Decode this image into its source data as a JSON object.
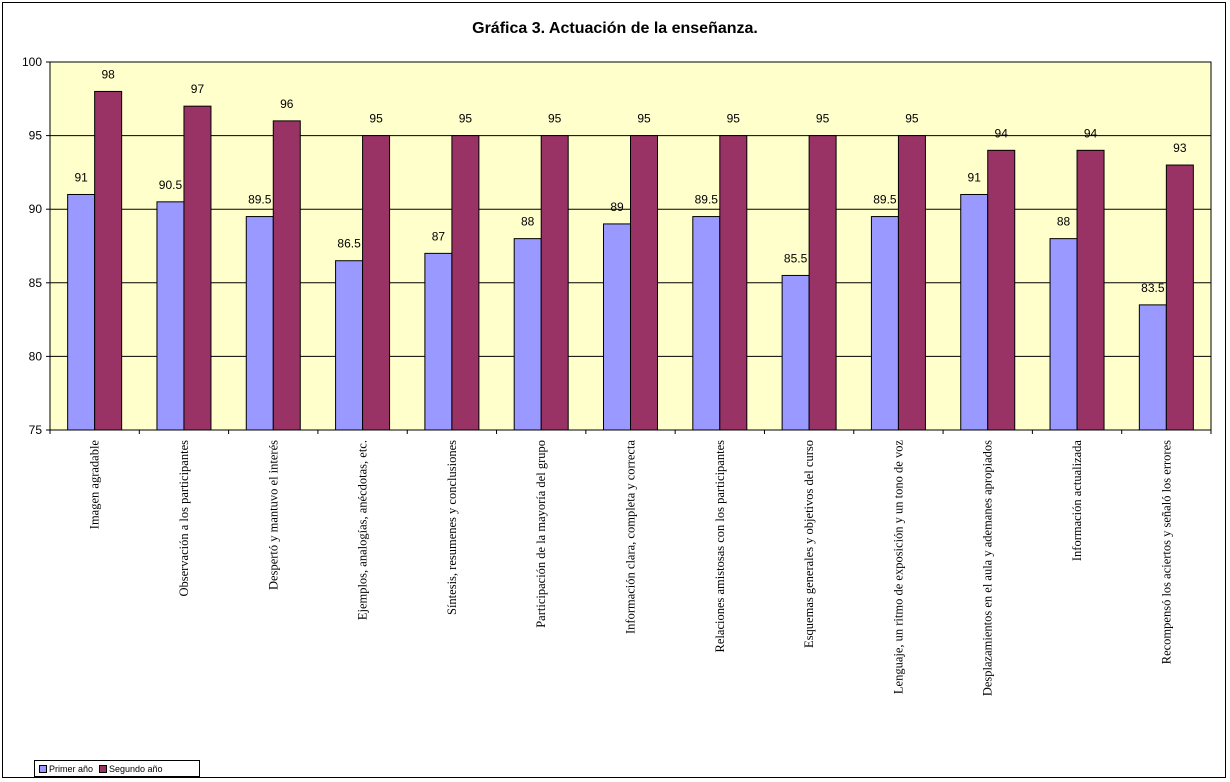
{
  "chart_data": {
    "type": "bar",
    "title": "Gráfica 3. Actuación de la enseñanza.",
    "xlabel": "",
    "ylabel": "",
    "ylim": [
      75,
      100
    ],
    "yticks": [
      75,
      80,
      85,
      90,
      95,
      100
    ],
    "grid": true,
    "legend": "bottom-left",
    "plot_background": "#FFFFCC",
    "categories": [
      "Imagen  agradable",
      "Observación  a los participantes",
      "Despertó y mantuvo el interés",
      "Ejemplos, analogías,  anécdotas, etc.",
      "Síntesis, resumenes y conclusiones",
      "Participación de la mayoría del grupo",
      "Información  clara, completa y correcta",
      "Relaciones amistosas con los participantes",
      "Esquemas  generales  y  objetivos del curso",
      "Lenguaje, un ritmo de exposición y un tono de voz",
      "Desplazamientos en el aula  y ademanes apropiados",
      "Información  actualizada",
      "Recompensó los aciertos y señaló los errores"
    ],
    "series": [
      {
        "name": "Primer año",
        "color": "#9999FF",
        "values": [
          91,
          90.5,
          89.5,
          86.5,
          87,
          88,
          89,
          89.5,
          85.5,
          89.5,
          91,
          88,
          83.5
        ]
      },
      {
        "name": "Segundo año",
        "color": "#993366",
        "values": [
          98,
          97,
          96,
          95,
          95,
          95,
          95,
          95,
          95,
          95,
          94,
          94,
          93
        ]
      }
    ]
  }
}
